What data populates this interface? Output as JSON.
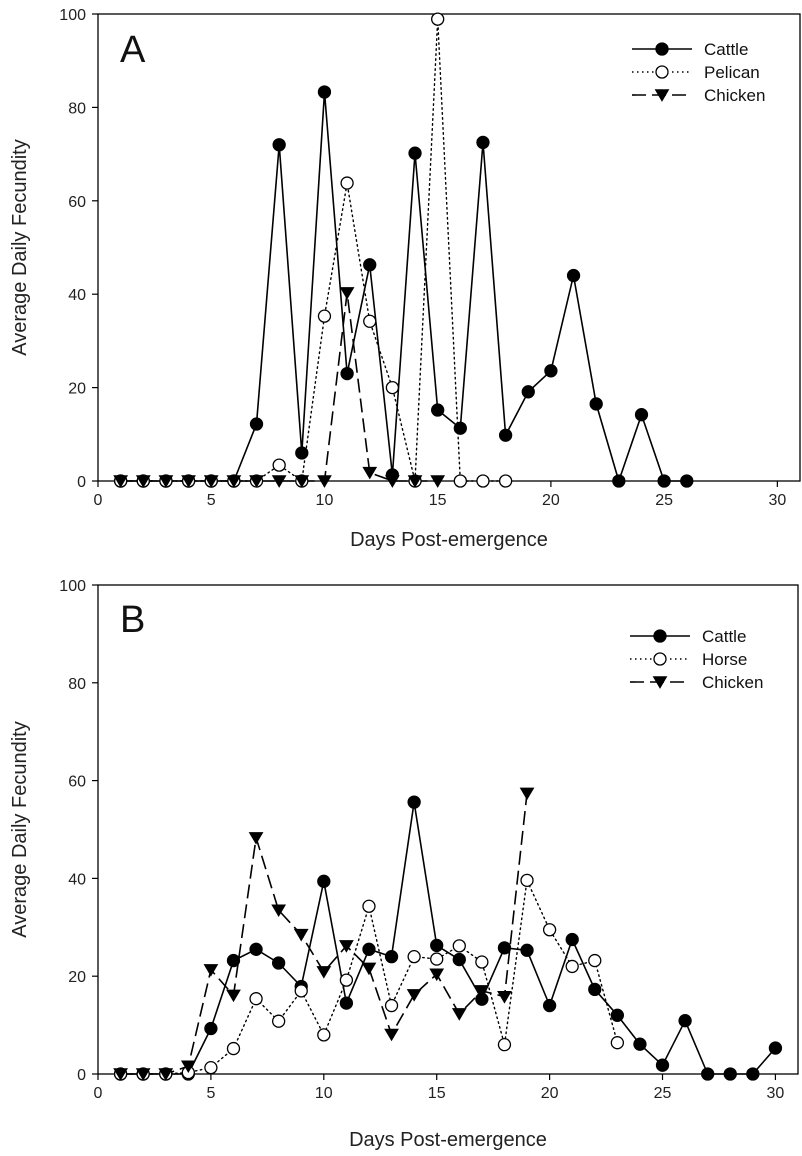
{
  "chart_data": [
    {
      "type": "line",
      "panel_label": "A",
      "xlabel": "Days Post-emergence",
      "ylabel": "Average Daily Fecundity",
      "xlim": [
        0,
        31
      ],
      "ylim": [
        0,
        100
      ],
      "x_ticks": [
        0,
        5,
        10,
        15,
        20,
        25,
        30
      ],
      "y_ticks": [
        0,
        20,
        40,
        60,
        80,
        100
      ],
      "legend_position": "top-right",
      "series": [
        {
          "name": "Cattle",
          "marker": "filled-circle",
          "line": "solid",
          "x": [
            1,
            2,
            3,
            4,
            5,
            6,
            7,
            8,
            9,
            10,
            11,
            12,
            13,
            14,
            15,
            16,
            17,
            18,
            19,
            20,
            21,
            22,
            23,
            24,
            25,
            26
          ],
          "y": [
            0,
            0,
            0,
            0,
            0,
            0,
            12.2,
            72,
            6,
            83.3,
            23,
            46.3,
            1.3,
            70.2,
            15.2,
            11.3,
            72.5,
            9.8,
            19.1,
            23.6,
            44,
            16.5,
            0,
            14.2,
            0,
            0
          ]
        },
        {
          "name": "Pelican",
          "marker": "open-circle",
          "line": "dotted",
          "x": [
            1,
            2,
            3,
            4,
            5,
            6,
            7,
            8,
            9,
            10,
            11,
            12,
            13,
            14,
            15,
            16,
            17,
            18
          ],
          "y": [
            0,
            0,
            0,
            0,
            0,
            0,
            0,
            3.4,
            0,
            35.3,
            63.8,
            34.2,
            20,
            0,
            98.9,
            0,
            0,
            0
          ]
        },
        {
          "name": "Chicken",
          "marker": "filled-triangle-down",
          "line": "dashed",
          "x": [
            1,
            2,
            3,
            4,
            5,
            6,
            7,
            8,
            9,
            10,
            11,
            12,
            13,
            14,
            15
          ],
          "y": [
            0,
            0,
            0,
            0,
            0,
            0,
            0,
            0,
            0,
            0,
            40.3,
            1.8,
            0,
            0,
            0
          ]
        }
      ]
    },
    {
      "type": "line",
      "panel_label": "B",
      "xlabel": "Days Post-emergence",
      "ylabel": "Average Daily Fecundity",
      "xlim": [
        0,
        31
      ],
      "ylim": [
        0,
        100
      ],
      "x_ticks": [
        0,
        5,
        10,
        15,
        20,
        25,
        30
      ],
      "y_ticks": [
        0,
        20,
        40,
        60,
        80,
        100
      ],
      "legend_position": "top-right",
      "series": [
        {
          "name": "Cattle",
          "marker": "filled-circle",
          "line": "solid",
          "x": [
            1,
            2,
            3,
            4,
            5,
            6,
            7,
            8,
            9,
            10,
            11,
            12,
            13,
            14,
            15,
            16,
            17,
            18,
            19,
            20,
            21,
            22,
            23,
            24,
            25,
            26,
            27,
            28,
            29,
            30
          ],
          "y": [
            0,
            0,
            0,
            0,
            9.3,
            23.2,
            25.5,
            22.7,
            17.9,
            39.4,
            14.5,
            25.5,
            24,
            55.6,
            26.3,
            23.4,
            15.3,
            25.8,
            25.3,
            14,
            27.5,
            17.3,
            12,
            6.1,
            1.8,
            10.9,
            0,
            0,
            0,
            5.3
          ]
        },
        {
          "name": "Horse",
          "marker": "open-circle",
          "line": "dotted",
          "x": [
            1,
            2,
            3,
            4,
            5,
            6,
            7,
            8,
            9,
            10,
            11,
            12,
            13,
            14,
            15,
            16,
            17,
            18,
            19,
            20,
            21,
            22,
            23
          ],
          "y": [
            0,
            0,
            0,
            0.3,
            1.3,
            5.2,
            15.4,
            10.8,
            17,
            8,
            19.2,
            34.3,
            14,
            24,
            23.5,
            26.2,
            22.9,
            6,
            39.6,
            29.5,
            22,
            23.2,
            6.4
          ]
        },
        {
          "name": "Chicken",
          "marker": "filled-triangle-down",
          "line": "dashed",
          "x": [
            1,
            2,
            3,
            4,
            5,
            6,
            7,
            8,
            9,
            10,
            11,
            12,
            13,
            14,
            15,
            16,
            17,
            18,
            19
          ],
          "y": [
            0,
            0,
            0,
            1.6,
            21.3,
            16.1,
            48.3,
            33.5,
            28.5,
            20.9,
            26.2,
            21.6,
            8.1,
            16.2,
            20.4,
            12.3,
            17,
            15.8,
            57.4
          ]
        }
      ]
    }
  ]
}
